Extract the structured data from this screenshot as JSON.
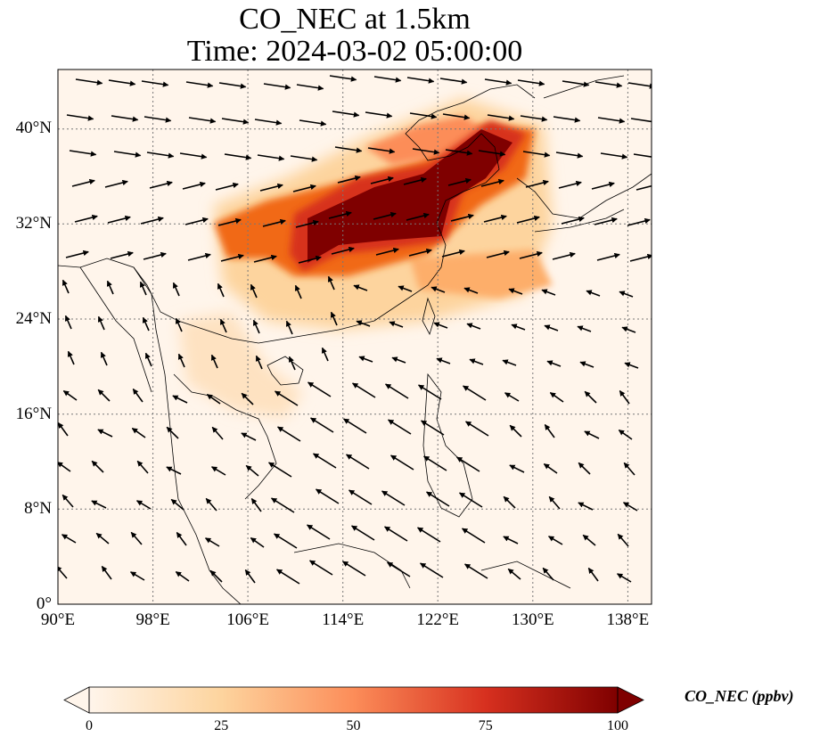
{
  "title": {
    "line1": "CO_NEC at 1.5km",
    "line2": "Time: 2024-03-02 05:00:00"
  },
  "map": {
    "extent": {
      "lon_min": 90,
      "lon_max": 140,
      "lat_min": 0,
      "lat_max": 45
    },
    "lat_ticks": [
      "0°",
      "8°N",
      "16°N",
      "24°N",
      "32°N",
      "40°N"
    ],
    "lon_ticks": [
      "90°E",
      "98°E",
      "106°E",
      "114°E",
      "122°E",
      "130°E",
      "138°E"
    ],
    "gridlines": "dotted",
    "wind_vectors": true,
    "plume_core_color": "#7f0000",
    "background_color": "#fff5eb"
  },
  "colorbar": {
    "label": "CO_NEC (ppbv)",
    "ticks": [
      "0",
      "25",
      "50",
      "75",
      "100"
    ],
    "range": [
      0,
      100
    ],
    "extend": "both",
    "colormap": [
      "#fff5eb",
      "#fdd49e",
      "#fc8d59",
      "#d7301f",
      "#7f0000"
    ]
  }
}
